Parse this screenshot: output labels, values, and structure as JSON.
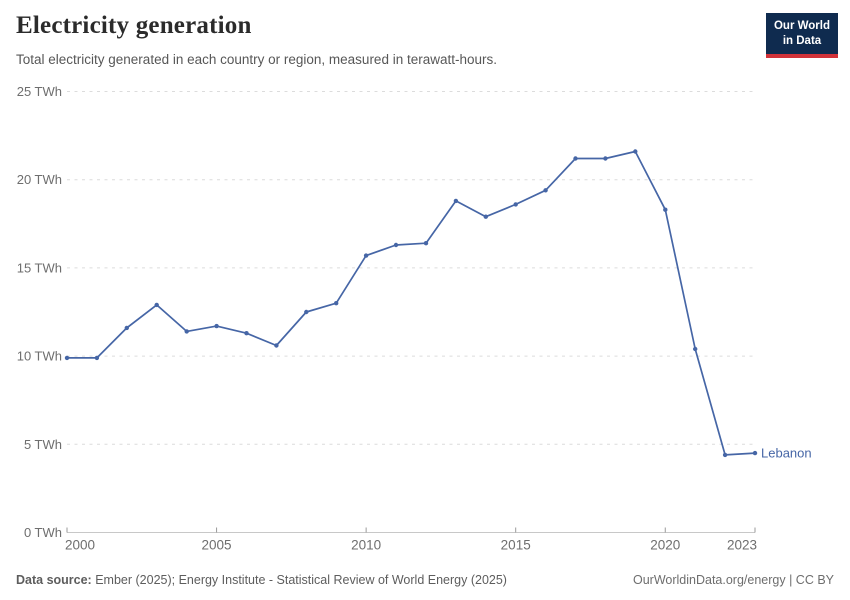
{
  "header": {
    "title": "Electricity generation",
    "subtitle": "Total electricity generated in each country or region, measured in terawatt-hours."
  },
  "logo": {
    "line1": "Our World",
    "line2": "in Data",
    "bg_color": "#0f2b4f",
    "stripe_color": "#d13239"
  },
  "footer": {
    "source_label": "Data source:",
    "source_text": " Ember (2025); Energy Institute - Statistical Review of World Energy (2025)",
    "license_text": "OurWorldinData.org/energy | CC BY"
  },
  "chart_data": {
    "type": "line",
    "title": "Electricity generation",
    "unit": "TWh",
    "entity_label": "Lebanon",
    "x": [
      2000,
      2001,
      2002,
      2003,
      2004,
      2005,
      2006,
      2007,
      2008,
      2009,
      2010,
      2011,
      2012,
      2013,
      2014,
      2015,
      2016,
      2017,
      2018,
      2019,
      2020,
      2021,
      2022,
      2023
    ],
    "series": [
      {
        "name": "Lebanon",
        "values": [
          9.9,
          9.9,
          11.6,
          12.9,
          11.4,
          11.7,
          11.3,
          10.6,
          12.5,
          13.0,
          15.7,
          16.3,
          16.4,
          18.8,
          17.9,
          18.6,
          19.4,
          21.2,
          21.2,
          21.6,
          18.3,
          10.4,
          4.4,
          4.5
        ]
      }
    ],
    "xlim": [
      2000,
      2023
    ],
    "ylim": [
      0,
      25
    ],
    "grid": true,
    "legend_position": "end-of-line",
    "x_ticks": [
      {
        "value": 2000,
        "label": "2000"
      },
      {
        "value": 2005,
        "label": "2005"
      },
      {
        "value": 2010,
        "label": "2010"
      },
      {
        "value": 2015,
        "label": "2015"
      },
      {
        "value": 2020,
        "label": "2020"
      },
      {
        "value": 2023,
        "label": "2023"
      }
    ],
    "y_ticks": [
      {
        "value": 0,
        "label": "0 TWh"
      },
      {
        "value": 5,
        "label": "5 TWh"
      },
      {
        "value": 10,
        "label": "10 TWh"
      },
      {
        "value": 15,
        "label": "15 TWh"
      },
      {
        "value": 20,
        "label": "20 TWh"
      },
      {
        "value": 25,
        "label": "25 TWh"
      }
    ],
    "colors": {
      "line": "#4666a6",
      "gridline": "#dcdcdc",
      "axis_line": "#c8c8c8",
      "tick_mark": "#9a9a9a",
      "tick_label": "#6e6e6e"
    }
  }
}
